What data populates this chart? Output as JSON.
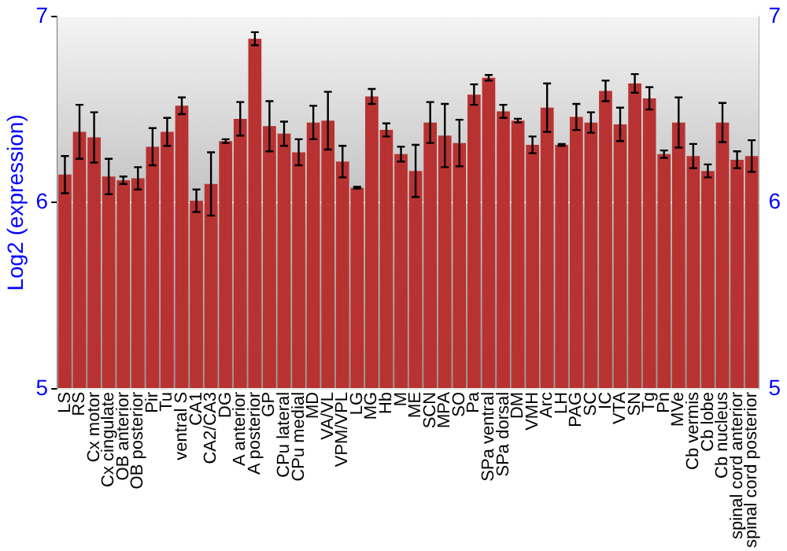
{
  "chart_data": {
    "type": "bar",
    "ylabel": "Log2 (expression)",
    "categories": [
      "LS",
      "RS",
      "Cx motor",
      "Cx cingulate",
      "OB anterior",
      "OB posterior",
      "Pir",
      "Tu",
      "ventral S",
      "CA1",
      "CA2/CA3",
      "DG",
      "A anterior",
      "A posterior",
      "GP",
      "CPu lateral",
      "CPu medial",
      "MD",
      "VA/VL",
      "VPM/VPL",
      "LG",
      "MG",
      "Hb",
      "M",
      "ME",
      "SCN",
      "MPA",
      "SO",
      "Pa",
      "SPa ventral",
      "SPa dorsal",
      "DM",
      "VMH",
      "Arc",
      "LH",
      "PAG",
      "SC",
      "IC",
      "VTA",
      "SN",
      "Tg",
      "Pn",
      "MVe",
      "Cb vermis",
      "Cb lobe",
      "Cb nucleus",
      "spinal cord anterior",
      "spinal cord posterior"
    ],
    "values": [
      6.15,
      6.38,
      6.35,
      6.14,
      6.12,
      6.13,
      6.3,
      6.38,
      6.52,
      6.01,
      6.1,
      6.33,
      6.45,
      6.88,
      6.41,
      6.37,
      6.27,
      6.43,
      6.44,
      6.22,
      6.08,
      6.57,
      6.39,
      6.26,
      6.17,
      6.43,
      6.36,
      6.32,
      6.58,
      6.67,
      6.49,
      6.44,
      6.31,
      6.51,
      6.31,
      6.46,
      6.43,
      6.6,
      6.42,
      6.64,
      6.56,
      6.26,
      6.43,
      6.25,
      6.17,
      6.43,
      6.23,
      6.25
    ],
    "errors": [
      0.1,
      0.145,
      0.135,
      0.095,
      0.02,
      0.06,
      0.1,
      0.075,
      0.045,
      0.06,
      0.17,
      0.01,
      0.09,
      0.035,
      0.135,
      0.065,
      0.07,
      0.09,
      0.155,
      0.085,
      0.005,
      0.04,
      0.035,
      0.04,
      0.14,
      0.11,
      0.17,
      0.125,
      0.055,
      0.015,
      0.035,
      0.01,
      0.045,
      0.13,
      0.005,
      0.07,
      0.055,
      0.055,
      0.09,
      0.05,
      0.06,
      0.02,
      0.135,
      0.065,
      0.035,
      0.105,
      0.045,
      0.085
    ],
    "color": "#b83232",
    "ylim": [
      5,
      7
    ],
    "yticks": [
      5,
      6,
      7
    ],
    "y2lim": [
      5,
      7
    ],
    "y2ticks": [
      5,
      6,
      7
    ],
    "grid": "y",
    "legend": false
  }
}
